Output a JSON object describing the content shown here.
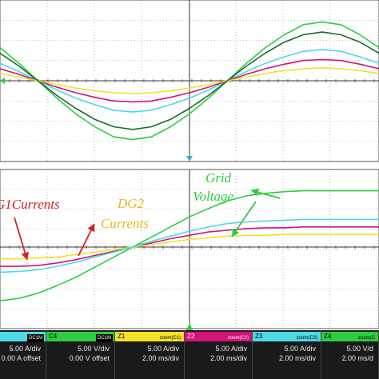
{
  "chart_data": [
    {
      "type": "line",
      "description_panel": "upper",
      "x": [
        0,
        2,
        4,
        6,
        8,
        10,
        12,
        14,
        16,
        18,
        20,
        22,
        24,
        26,
        28,
        30,
        32,
        34,
        36,
        38,
        40
      ],
      "series": [
        {
          "color": "#2ecc40",
          "values": [
            3.6,
            1.9,
            0,
            -1.9,
            -3.6,
            -5.0,
            -6.1,
            -6.4,
            -6.1,
            -5.0,
            -3.6,
            -1.9,
            0,
            1.9,
            3.6,
            5.0,
            6.1,
            6.4,
            6.1,
            5.0,
            3.6
          ]
        },
        {
          "color": "#4fd8e6",
          "values": [
            1.9,
            1.0,
            0,
            -1.0,
            -1.9,
            -2.6,
            -3.2,
            -3.4,
            -3.2,
            -2.6,
            -1.9,
            -1.0,
            0,
            1.0,
            1.9,
            2.6,
            3.2,
            3.4,
            3.2,
            2.6,
            1.9
          ]
        },
        {
          "color": "#d4127a",
          "values": [
            1.3,
            0.7,
            0,
            -0.7,
            -1.3,
            -1.8,
            -2.2,
            -2.3,
            -2.2,
            -1.8,
            -1.3,
            -0.7,
            0,
            0.7,
            1.3,
            1.8,
            2.2,
            2.3,
            2.2,
            1.8,
            1.3
          ]
        },
        {
          "color": "#f2e22a",
          "values": [
            0.8,
            0.4,
            0,
            -0.4,
            -0.8,
            -1.1,
            -1.3,
            -1.4,
            -1.3,
            -1.1,
            -0.8,
            -0.4,
            0,
            0.4,
            0.8,
            1.1,
            1.3,
            1.4,
            1.3,
            1.1,
            0.8
          ]
        },
        {
          "color": "#1a6b2e",
          "values": [
            3.0,
            1.6,
            0,
            -1.6,
            -3.0,
            -4.2,
            -5.0,
            -5.3,
            -5.0,
            -4.2,
            -3.0,
            -1.6,
            0,
            1.6,
            3.0,
            4.2,
            5.0,
            5.3,
            5.0,
            4.2,
            3.0
          ]
        }
      ]
    },
    {
      "type": "line",
      "description_panel": "lower-zoom",
      "x": [
        0,
        2,
        4,
        6,
        8,
        10,
        12,
        14,
        16,
        18,
        20,
        22,
        24,
        26,
        28,
        30,
        32,
        34,
        36,
        38,
        40
      ],
      "series": [
        {
          "color": "#2ecc40",
          "values": [
            -6.4,
            -6.1,
            -5.5,
            -4.6,
            -3.6,
            -2.4,
            -1.2,
            0,
            1.2,
            2.4,
            3.6,
            4.6,
            5.5,
            6.1,
            6.4,
            6.6,
            6.7,
            6.7,
            6.7,
            6.7,
            6.7
          ]
        },
        {
          "color": "#d4127a",
          "values": [
            -2.3,
            -2.3,
            -2.2,
            -1.9,
            -1.5,
            -1.0,
            -0.5,
            0,
            0.5,
            1.0,
            1.4,
            1.8,
            2.0,
            2.2,
            2.3,
            2.3,
            2.4,
            2.4,
            2.4,
            2.4,
            2.4
          ]
        },
        {
          "color": "#f2e22a",
          "values": [
            -1.4,
            -1.4,
            -1.3,
            -1.2,
            -0.9,
            -0.6,
            -0.3,
            0,
            0.3,
            0.6,
            0.9,
            1.1,
            1.3,
            1.4,
            1.4,
            1.5,
            1.5,
            1.5,
            1.5,
            1.5,
            1.5
          ]
        },
        {
          "color": "#4fd8e6",
          "values": [
            -3.0,
            -2.9,
            -2.7,
            -2.3,
            -1.8,
            -1.2,
            -0.6,
            0,
            0.7,
            1.3,
            1.9,
            2.4,
            2.8,
            3.0,
            3.1,
            3.2,
            3.3,
            3.3,
            3.3,
            3.3,
            3.3
          ]
        }
      ]
    }
  ],
  "annotations": {
    "dg1": "G1Currents",
    "dg2_line1": "DG2",
    "dg2_line2": "Currents",
    "grid_line1": "Grid",
    "grid_line2": "Voltage"
  },
  "colors": {
    "dg1": "#d42020",
    "dg2": "#e8b820",
    "grid": "#2ecc40"
  },
  "channels": [
    {
      "head": "",
      "tag": "DC1M",
      "line1": "5.00 A/div",
      "line2": "0.00 A offset",
      "head_color": "#4fd8e6"
    },
    {
      "head": "C4",
      "tag": "DC1M",
      "line1": "5.00 V/div",
      "line2": "0.00 V offset",
      "head_color": "#2ecc40"
    },
    {
      "head": "Z1",
      "tag": "zoom(C1)",
      "line1": "5.00 A/div",
      "line2": "2.00 ms/div",
      "head_color": "#f2e22a"
    },
    {
      "head": "Z2",
      "tag": "zoom(C2)",
      "line1": "5.00 A/div",
      "line2": "2.00 ms/div",
      "head_color": "#d4127a"
    },
    {
      "head": "Z3",
      "tag": "zoom(C3)",
      "line1": "5.00 A/div",
      "line2": "2.00 ms/div",
      "head_color": "#4fd8e6"
    },
    {
      "head": "Z4",
      "tag": "zoom(C",
      "line1": "5.00 V/d",
      "line2": "2.00 ms/d",
      "head_color": "#2ecc40"
    }
  ]
}
